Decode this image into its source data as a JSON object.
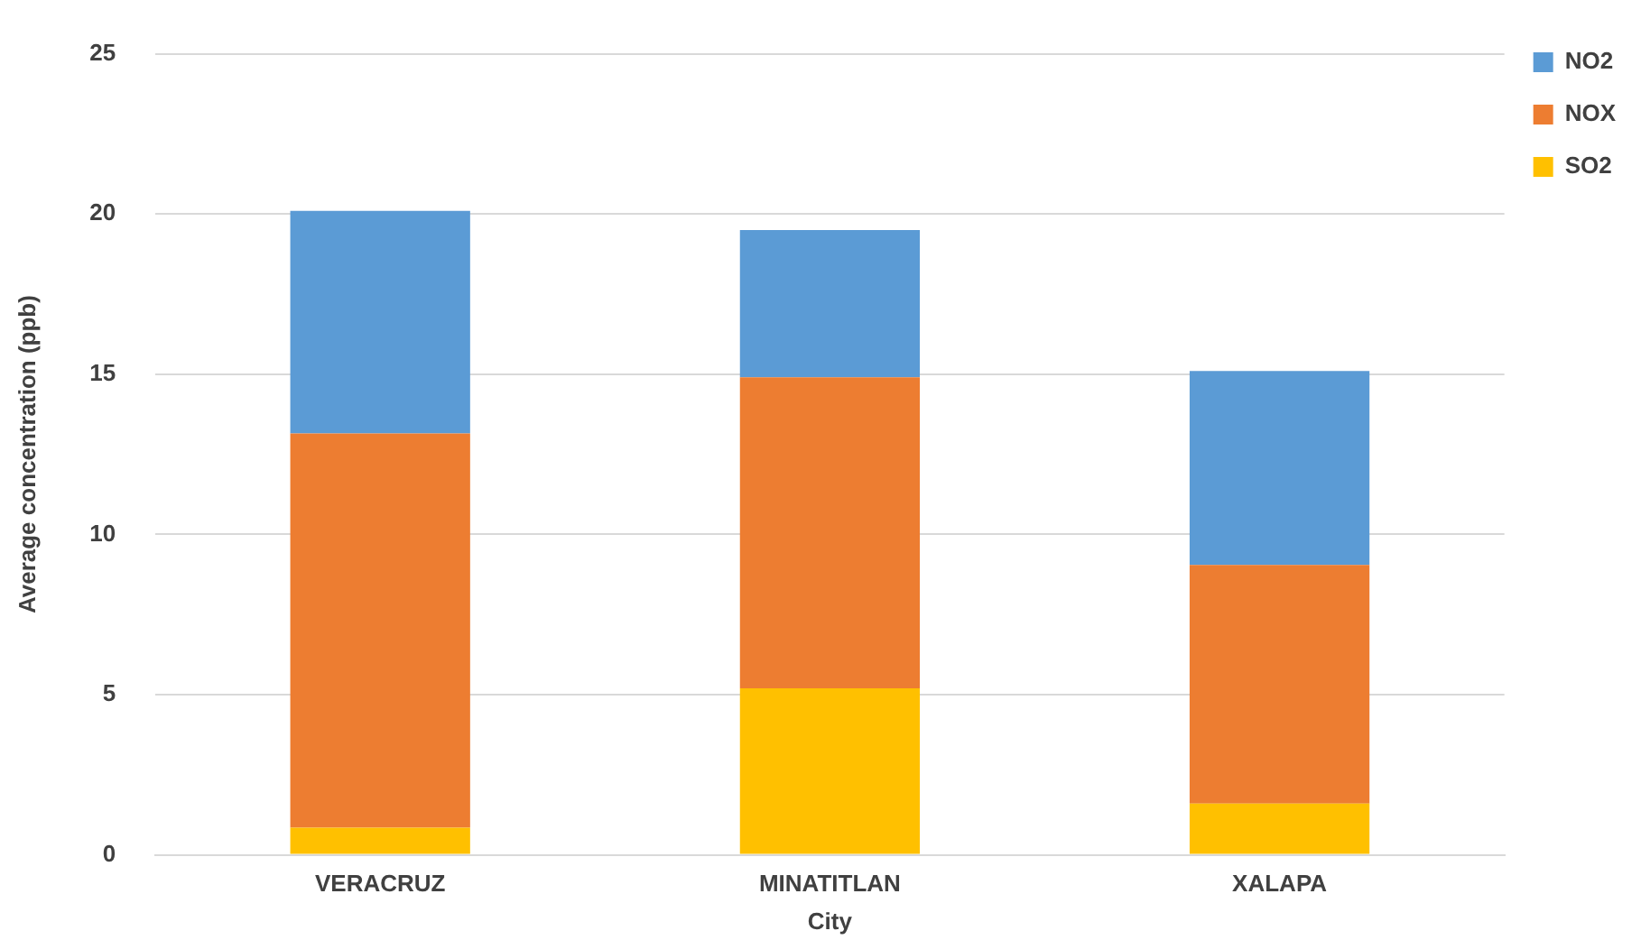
{
  "chart_data": {
    "type": "bar",
    "stacked": true,
    "xlabel": "City",
    "ylabel": "Average concentration (ppb)",
    "categories": [
      "VERACRUZ",
      "MINATITLAN",
      "XALAPA"
    ],
    "series": [
      {
        "name": "SO2",
        "color": "#ffc000",
        "values": [
          0.85,
          5.2,
          1.6
        ]
      },
      {
        "name": "NOX",
        "color": "#ed7d31",
        "values": [
          12.3,
          9.7,
          7.45
        ]
      },
      {
        "name": "NO2",
        "color": "#5b9bd5",
        "values": [
          6.95,
          4.6,
          6.05
        ]
      }
    ],
    "ylim": [
      0,
      25
    ],
    "yticks": [
      0,
      5,
      10,
      15,
      20,
      25
    ],
    "grid": "y",
    "legend": "top right"
  }
}
